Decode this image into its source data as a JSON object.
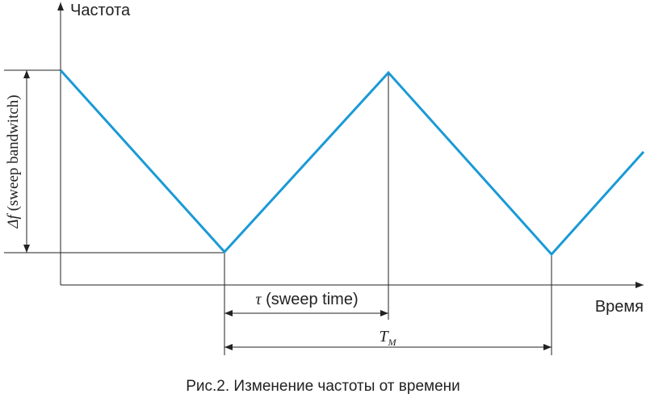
{
  "axes": {
    "y_label": "Частота",
    "x_label": "Время"
  },
  "delta_f": {
    "symbol": "Δf",
    "text": "(sweep bandwitch)"
  },
  "tau": {
    "symbol": "τ",
    "text": "(sweep time)"
  },
  "period": {
    "symbol": "T",
    "subscript": "M"
  },
  "caption": "Рис.2. Изменение частоты от времени"
}
